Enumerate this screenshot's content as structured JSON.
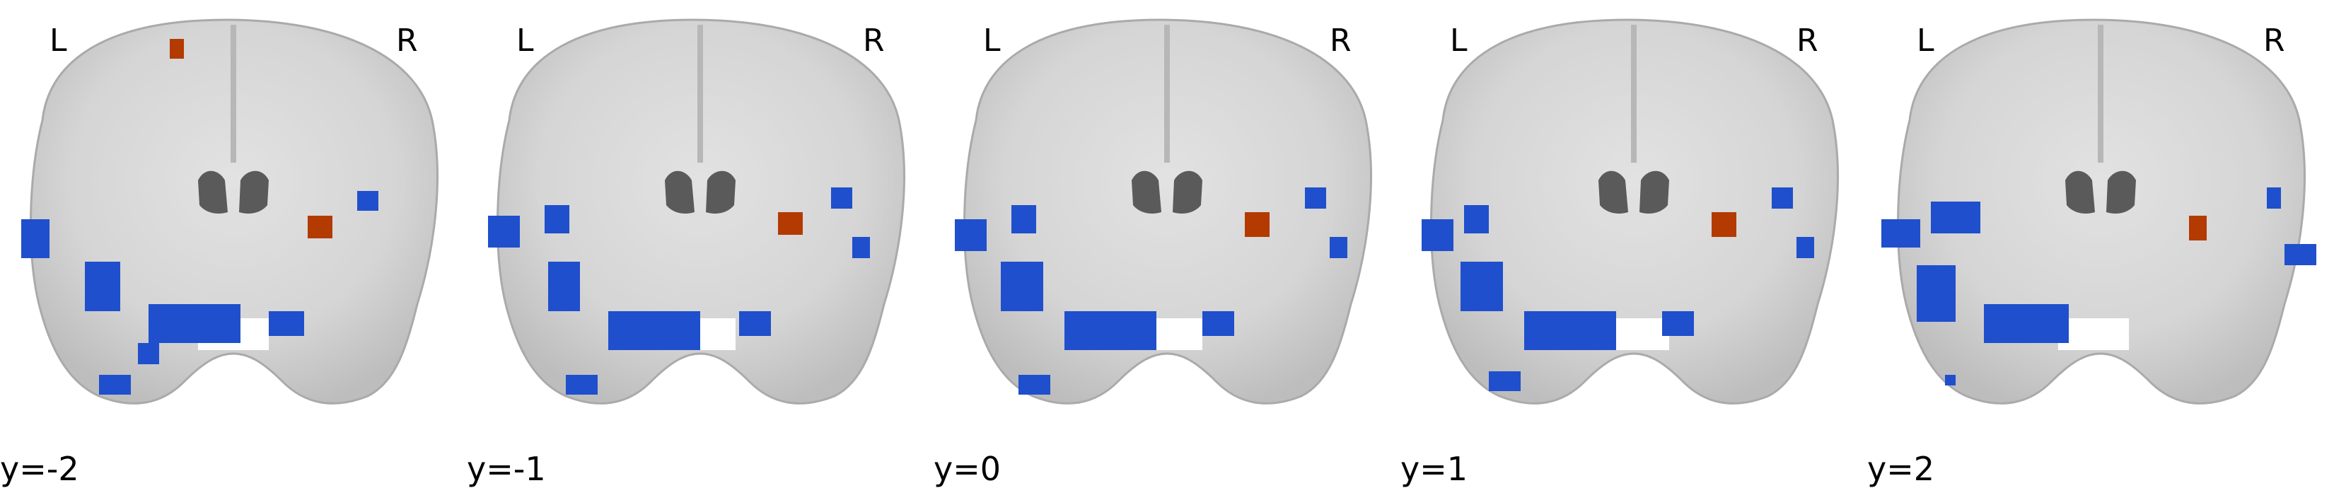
{
  "figure": {
    "panels": [
      {
        "coord": "y=-2",
        "left": "L",
        "right": "R"
      },
      {
        "coord": "y=-1",
        "left": "L",
        "right": "R"
      },
      {
        "coord": "y=0",
        "left": "L",
        "right": "R"
      },
      {
        "coord": "y=1",
        "left": "L",
        "right": "R"
      },
      {
        "coord": "y=2",
        "left": "L",
        "right": "R"
      }
    ],
    "colors": {
      "background": "#ffffff",
      "brain_light": "#dcdcdc",
      "brain_mid": "#c4c4c4",
      "ventricle": "#5a5a5a",
      "positive_cluster": "#b33a00",
      "negative_cluster": "#1f4fcc"
    }
  }
}
